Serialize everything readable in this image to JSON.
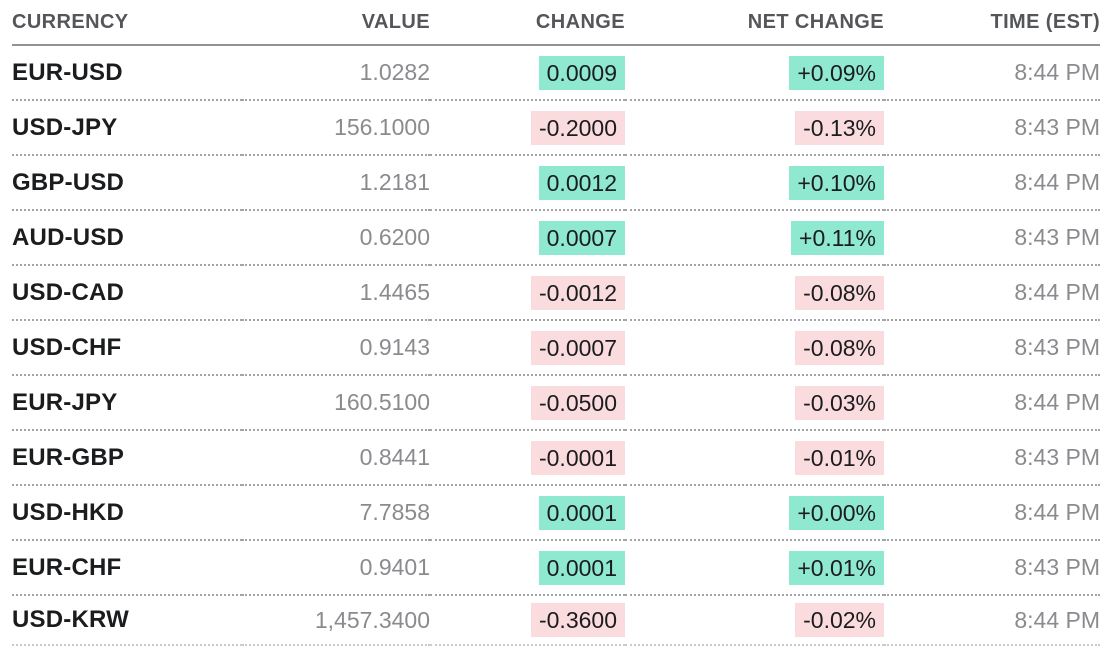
{
  "colors": {
    "positive_bg": "#8FE9D1",
    "negative_bg": "#FBDCDE",
    "text_dark": "#1B1C1E",
    "text_gray": "#8A8B8E",
    "header_gray": "#55565A"
  },
  "table": {
    "columns": [
      "CURRENCY",
      "VALUE",
      "CHANGE",
      "NET CHANGE",
      "TIME (EST)"
    ],
    "rows": [
      {
        "pair": "EUR-USD",
        "value": "1.0282",
        "change": "0.0009",
        "net_change": "+0.09%",
        "direction": "up",
        "time": "8:44 PM"
      },
      {
        "pair": "USD-JPY",
        "value": "156.1000",
        "change": "-0.2000",
        "net_change": "-0.13%",
        "direction": "down",
        "time": "8:43 PM"
      },
      {
        "pair": "GBP-USD",
        "value": "1.2181",
        "change": "0.0012",
        "net_change": "+0.10%",
        "direction": "up",
        "time": "8:44 PM"
      },
      {
        "pair": "AUD-USD",
        "value": "0.6200",
        "change": "0.0007",
        "net_change": "+0.11%",
        "direction": "up",
        "time": "8:43 PM"
      },
      {
        "pair": "USD-CAD",
        "value": "1.4465",
        "change": "-0.0012",
        "net_change": "-0.08%",
        "direction": "down",
        "time": "8:44 PM"
      },
      {
        "pair": "USD-CHF",
        "value": "0.9143",
        "change": "-0.0007",
        "net_change": "-0.08%",
        "direction": "down",
        "time": "8:43 PM"
      },
      {
        "pair": "EUR-JPY",
        "value": "160.5100",
        "change": "-0.0500",
        "net_change": "-0.03%",
        "direction": "down",
        "time": "8:44 PM"
      },
      {
        "pair": "EUR-GBP",
        "value": "0.8441",
        "change": "-0.0001",
        "net_change": "-0.01%",
        "direction": "down",
        "time": "8:43 PM"
      },
      {
        "pair": "USD-HKD",
        "value": "7.7858",
        "change": "0.0001",
        "net_change": "+0.00%",
        "direction": "up",
        "time": "8:44 PM"
      },
      {
        "pair": "EUR-CHF",
        "value": "0.9401",
        "change": "0.0001",
        "net_change": "+0.01%",
        "direction": "up",
        "time": "8:43 PM"
      },
      {
        "pair": "USD-KRW",
        "value": "1,457.3400",
        "change": "-0.3600",
        "net_change": "-0.02%",
        "direction": "down",
        "time": "8:44 PM"
      }
    ]
  }
}
